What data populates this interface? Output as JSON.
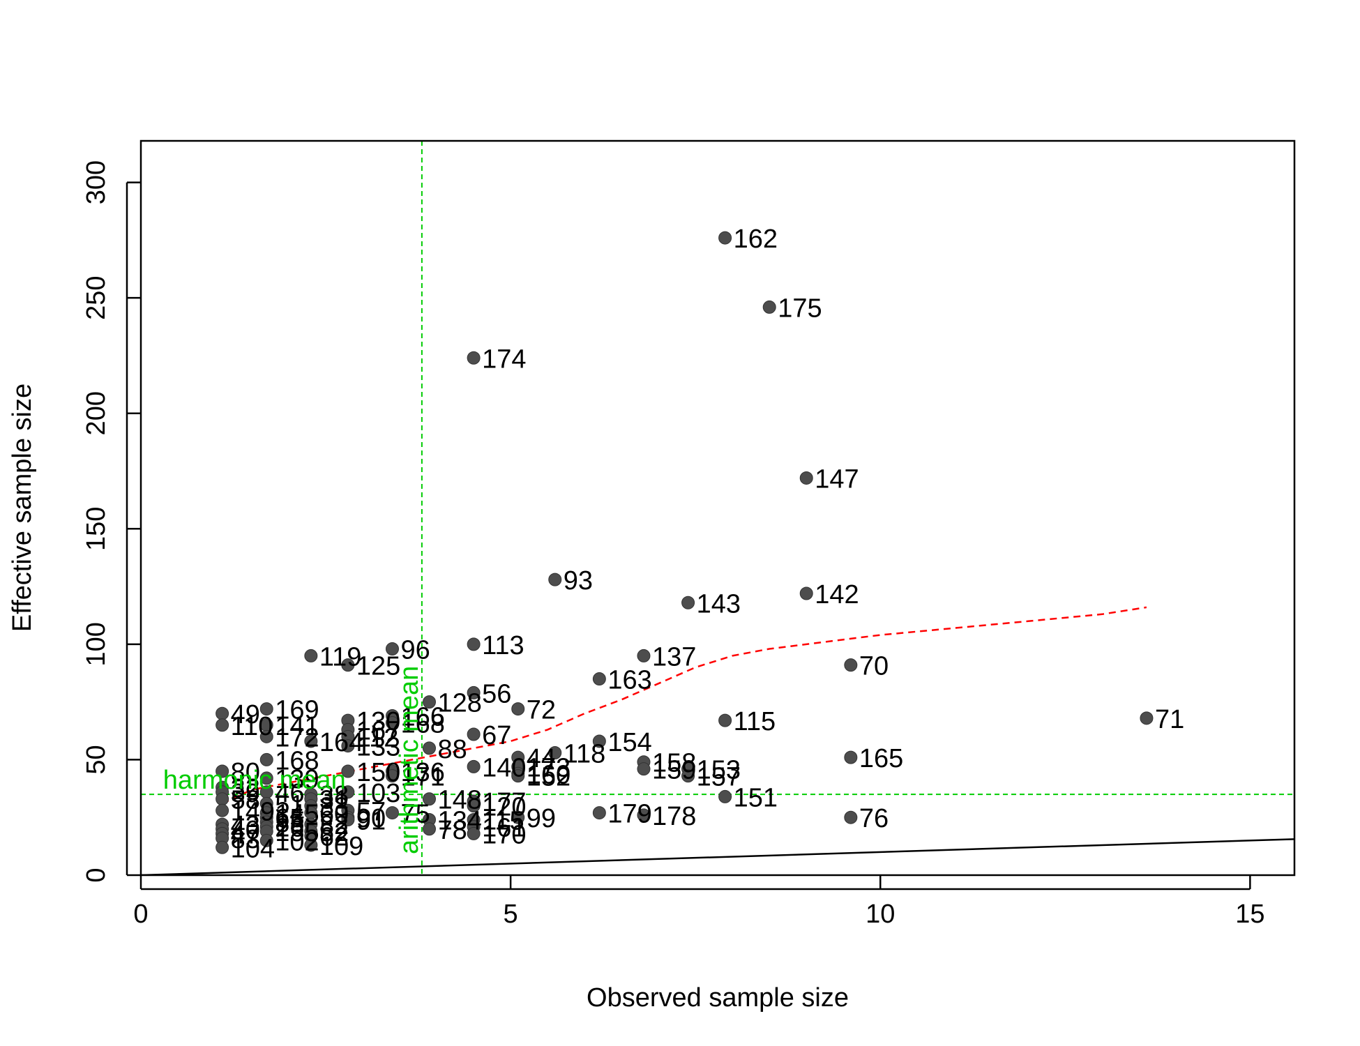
{
  "chart_data": {
    "type": "scatter",
    "title": "",
    "xlabel": "Observed sample size",
    "ylabel": "Effective sample size",
    "xlim": [
      0,
      15.6
    ],
    "ylim": [
      0,
      318
    ],
    "xticks": [
      0,
      5,
      10,
      15
    ],
    "yticks": [
      0,
      50,
      100,
      150,
      200,
      250,
      300
    ],
    "grid": false,
    "point_color": "#4d4d4d",
    "identity_line": {
      "from": [
        0,
        0
      ],
      "to": [
        15.6,
        15.6
      ],
      "color": "#000000"
    },
    "reference_lines": [
      {
        "orientation": "horizontal",
        "value": 35,
        "label": "harmonic mean",
        "color": "#00cc00"
      },
      {
        "orientation": "vertical",
        "value": 3.8,
        "label": "arithmetic mean",
        "color": "#00cc00"
      }
    ],
    "trend": {
      "color": "#ff0000",
      "points": [
        [
          1.1,
          31
        ],
        [
          1.5,
          37
        ],
        [
          2.0,
          40
        ],
        [
          2.5,
          43
        ],
        [
          3.0,
          46
        ],
        [
          3.5,
          49
        ],
        [
          4.0,
          52
        ],
        [
          4.5,
          55
        ],
        [
          5.0,
          58
        ],
        [
          5.5,
          63
        ],
        [
          6.0,
          70
        ],
        [
          6.5,
          76
        ],
        [
          7.0,
          83
        ],
        [
          7.5,
          90
        ],
        [
          8.0,
          95
        ],
        [
          8.5,
          98
        ],
        [
          9.0,
          100
        ],
        [
          9.5,
          102
        ],
        [
          10.0,
          104
        ],
        [
          11.0,
          107
        ],
        [
          12.0,
          110
        ],
        [
          13.0,
          113
        ],
        [
          13.6,
          116
        ]
      ]
    },
    "points": [
      {
        "x": 7.9,
        "y": 276,
        "label": "162"
      },
      {
        "x": 8.5,
        "y": 246,
        "label": "175"
      },
      {
        "x": 4.5,
        "y": 224,
        "label": "174"
      },
      {
        "x": 9.0,
        "y": 172,
        "label": "147"
      },
      {
        "x": 5.6,
        "y": 128,
        "label": "93"
      },
      {
        "x": 7.4,
        "y": 118,
        "label": "143"
      },
      {
        "x": 9.0,
        "y": 122,
        "label": "142"
      },
      {
        "x": 4.5,
        "y": 100,
        "label": "113"
      },
      {
        "x": 6.8,
        "y": 95,
        "label": "137"
      },
      {
        "x": 9.6,
        "y": 91,
        "label": "70"
      },
      {
        "x": 6.2,
        "y": 85,
        "label": "163"
      },
      {
        "x": 4.5,
        "y": 79,
        "label": "56"
      },
      {
        "x": 3.9,
        "y": 75,
        "label": "128"
      },
      {
        "x": 5.1,
        "y": 72,
        "label": "72"
      },
      {
        "x": 13.6,
        "y": 68,
        "label": "71"
      },
      {
        "x": 7.9,
        "y": 67,
        "label": "115"
      },
      {
        "x": 4.5,
        "y": 61,
        "label": "67"
      },
      {
        "x": 6.2,
        "y": 58,
        "label": "154"
      },
      {
        "x": 3.9,
        "y": 55,
        "label": "88"
      },
      {
        "x": 5.6,
        "y": 53,
        "label": "118"
      },
      {
        "x": 9.6,
        "y": 51,
        "label": "165"
      },
      {
        "x": 5.1,
        "y": 51,
        "label": "44"
      },
      {
        "x": 6.8,
        "y": 49,
        "label": "158"
      },
      {
        "x": 6.8,
        "y": 46,
        "label": "159"
      },
      {
        "x": 4.5,
        "y": 47,
        "label": "140"
      },
      {
        "x": 5.1,
        "y": 47,
        "label": "173"
      },
      {
        "x": 7.4,
        "y": 46,
        "label": "153"
      },
      {
        "x": 5.1,
        "y": 44,
        "label": "160"
      },
      {
        "x": 7.4,
        "y": 43,
        "label": "157"
      },
      {
        "x": 5.1,
        "y": 43,
        "label": "152"
      },
      {
        "x": 7.9,
        "y": 34,
        "label": "151"
      },
      {
        "x": 3.9,
        "y": 33,
        "label": "148"
      },
      {
        "x": 4.5,
        "y": 32,
        "label": "177"
      },
      {
        "x": 4.5,
        "y": 30,
        "label": "120"
      },
      {
        "x": 6.2,
        "y": 27,
        "label": "179"
      },
      {
        "x": 6.8,
        "y": 26,
        "label": "178"
      },
      {
        "x": 9.6,
        "y": 25,
        "label": "76"
      },
      {
        "x": 5.1,
        "y": 25,
        "label": "99"
      },
      {
        "x": 4.5,
        "y": 24,
        "label": "115"
      },
      {
        "x": 3.9,
        "y": 24,
        "label": "134"
      },
      {
        "x": 4.5,
        "y": 21,
        "label": "161"
      },
      {
        "x": 3.9,
        "y": 20,
        "label": "78"
      },
      {
        "x": 4.5,
        "y": 18,
        "label": "170"
      },
      {
        "x": 3.4,
        "y": 98,
        "label": "96"
      },
      {
        "x": 2.3,
        "y": 95,
        "label": "119"
      },
      {
        "x": 2.8,
        "y": 91,
        "label": "125"
      },
      {
        "x": 3.4,
        "y": 69,
        "label": "166"
      },
      {
        "x": 2.8,
        "y": 67,
        "label": "130"
      },
      {
        "x": 3.4,
        "y": 66,
        "label": "168"
      },
      {
        "x": 2.8,
        "y": 63,
        "label": "167"
      },
      {
        "x": 2.8,
        "y": 60,
        "label": "112"
      },
      {
        "x": 2.3,
        "y": 58,
        "label": "164"
      },
      {
        "x": 2.8,
        "y": 56,
        "label": "133"
      },
      {
        "x": 3.4,
        "y": 45,
        "label": "136"
      },
      {
        "x": 3.4,
        "y": 43,
        "label": "171"
      },
      {
        "x": 2.8,
        "y": 45,
        "label": "150"
      },
      {
        "x": 2.8,
        "y": 36,
        "label": "103"
      },
      {
        "x": 2.3,
        "y": 35,
        "label": "38"
      },
      {
        "x": 2.3,
        "y": 33,
        "label": "31"
      },
      {
        "x": 2.3,
        "y": 30,
        "label": "33"
      },
      {
        "x": 2.8,
        "y": 28,
        "label": "57"
      },
      {
        "x": 3.4,
        "y": 27,
        "label": "75"
      },
      {
        "x": 2.3,
        "y": 27,
        "label": "60"
      },
      {
        "x": 2.8,
        "y": 25,
        "label": "90"
      },
      {
        "x": 2.8,
        "y": 24,
        "label": "91"
      },
      {
        "x": 2.3,
        "y": 22,
        "label": "82"
      },
      {
        "x": 2.3,
        "y": 19,
        "label": "52"
      },
      {
        "x": 2.3,
        "y": 17,
        "label": "62"
      },
      {
        "x": 2.3,
        "y": 13,
        "label": "109"
      },
      {
        "x": 1.7,
        "y": 72,
        "label": "169"
      },
      {
        "x": 1.1,
        "y": 70,
        "label": "49"
      },
      {
        "x": 1.7,
        "y": 65,
        "label": "141"
      },
      {
        "x": 1.1,
        "y": 65,
        "label": "110"
      },
      {
        "x": 1.7,
        "y": 60,
        "label": "172"
      },
      {
        "x": 1.7,
        "y": 50,
        "label": "168"
      },
      {
        "x": 1.1,
        "y": 45,
        "label": "80"
      },
      {
        "x": 1.7,
        "y": 42,
        "label": "139"
      },
      {
        "x": 1.1,
        "y": 38,
        "label": "32"
      },
      {
        "x": 1.1,
        "y": 36,
        "label": "39"
      },
      {
        "x": 1.7,
        "y": 36,
        "label": "46"
      },
      {
        "x": 1.1,
        "y": 33,
        "label": "58"
      },
      {
        "x": 1.7,
        "y": 31,
        "label": "51"
      },
      {
        "x": 1.1,
        "y": 28,
        "label": "149"
      },
      {
        "x": 1.7,
        "y": 27,
        "label": "145"
      },
      {
        "x": 1.7,
        "y": 25,
        "label": "65"
      },
      {
        "x": 1.1,
        "y": 22,
        "label": "43"
      },
      {
        "x": 1.7,
        "y": 23,
        "label": "85"
      },
      {
        "x": 1.1,
        "y": 20,
        "label": "40"
      },
      {
        "x": 1.7,
        "y": 21,
        "label": "26"
      },
      {
        "x": 1.1,
        "y": 18,
        "label": "47"
      },
      {
        "x": 1.7,
        "y": 19,
        "label": "155"
      },
      {
        "x": 1.1,
        "y": 16,
        "label": "83"
      },
      {
        "x": 1.7,
        "y": 15,
        "label": "102"
      },
      {
        "x": 1.1,
        "y": 12,
        "label": "104"
      }
    ]
  }
}
